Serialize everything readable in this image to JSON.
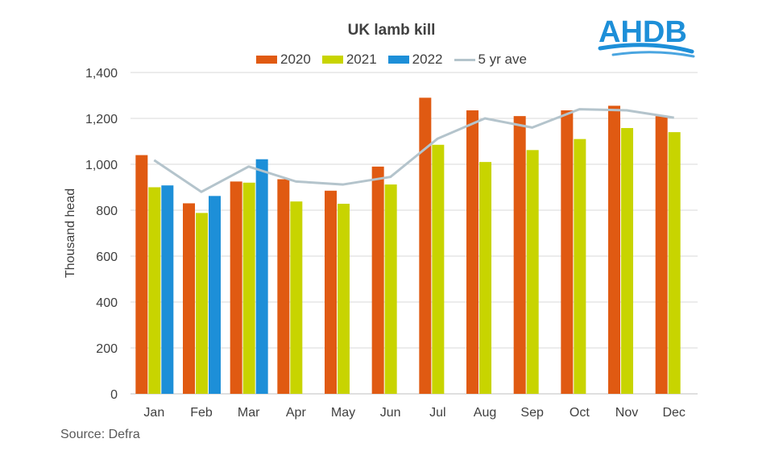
{
  "chart_data": {
    "type": "bar",
    "title": "UK lamb kill",
    "ylabel": "Thousand head",
    "xlabel": "",
    "ylim": [
      0,
      1400
    ],
    "yticks": [
      "0",
      "200",
      "400",
      "600",
      "800",
      "1,000",
      "1,200",
      "1,400"
    ],
    "ytick_values": [
      0,
      200,
      400,
      600,
      800,
      1000,
      1200,
      1400
    ],
    "grid": true,
    "legend_position": "top",
    "categories": [
      "Jan",
      "Feb",
      "Mar",
      "Apr",
      "May",
      "Jun",
      "Jul",
      "Aug",
      "Sep",
      "Oct",
      "Nov",
      "Dec"
    ],
    "series": [
      {
        "name": "2020",
        "type": "bar",
        "color": "#e05a12",
        "values": [
          1040,
          830,
          925,
          935,
          885,
          990,
          1290,
          1235,
          1210,
          1235,
          1255,
          1210
        ]
      },
      {
        "name": "2021",
        "type": "bar",
        "color": "#c8d400",
        "values": [
          900,
          788,
          920,
          838,
          828,
          912,
          1085,
          1010,
          1062,
          1110,
          1158,
          1140
        ]
      },
      {
        "name": "2022",
        "type": "bar",
        "color": "#1d8fd8",
        "values": [
          908,
          862,
          1022,
          null,
          null,
          null,
          null,
          null,
          null,
          null,
          null,
          null
        ]
      },
      {
        "name": "5 yr ave",
        "type": "line",
        "color": "#b4c4cc",
        "values": [
          1018,
          880,
          990,
          925,
          912,
          945,
          1112,
          1200,
          1160,
          1240,
          1235,
          1203
        ]
      }
    ]
  },
  "source": "Source: Defra",
  "logo": {
    "text": "AHDB",
    "color": "#1d8fd8"
  }
}
